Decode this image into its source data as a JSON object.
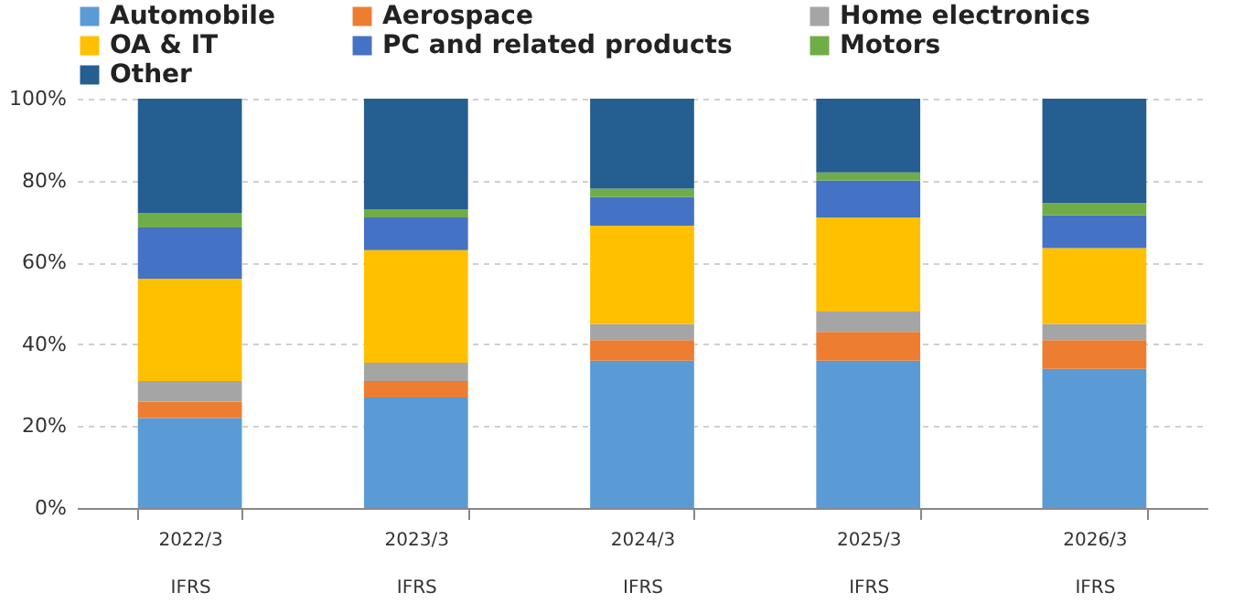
{
  "chart_data": {
    "type": "bar",
    "stacked": true,
    "categories": [
      "2022/3\nIFRS",
      "2023/3\nIFRS",
      "2024/3\nIFRS",
      "2025/3\nIFRS",
      "2026/3\nIFRS"
    ],
    "series": [
      {
        "name": "Automobile",
        "color": "#5b9bd5",
        "values": [
          22,
          27,
          36,
          36,
          34
        ]
      },
      {
        "name": "Aerospace",
        "color": "#ed7d31",
        "values": [
          4,
          4,
          5,
          7,
          7
        ]
      },
      {
        "name": "Home electronics",
        "color": "#a5a5a5",
        "values": [
          5,
          4.5,
          4,
          5,
          4
        ]
      },
      {
        "name": "OA & IT",
        "color": "#ffc000",
        "values": [
          25,
          27.5,
          24,
          23,
          18.5
        ]
      },
      {
        "name": "PC and related products",
        "color": "#4472c4",
        "values": [
          12.5,
          8,
          7,
          9,
          8
        ]
      },
      {
        "name": "Motors",
        "color": "#70ad47",
        "values": [
          3.5,
          2,
          2,
          2,
          3
        ]
      },
      {
        "name": "Other",
        "color": "#255e91",
        "values": [
          28,
          27,
          22,
          18,
          25.5
        ]
      }
    ],
    "ylim": [
      0,
      100
    ],
    "yticks": [
      {
        "value": 0,
        "label": "0%"
      },
      {
        "value": 20,
        "label": "20%"
      },
      {
        "value": 40,
        "label": "40%"
      },
      {
        "value": 60,
        "label": "60%"
      },
      {
        "value": 80,
        "label": "80%"
      },
      {
        "value": 100,
        "label": "100%"
      }
    ],
    "grid": "y",
    "legend": "top"
  }
}
